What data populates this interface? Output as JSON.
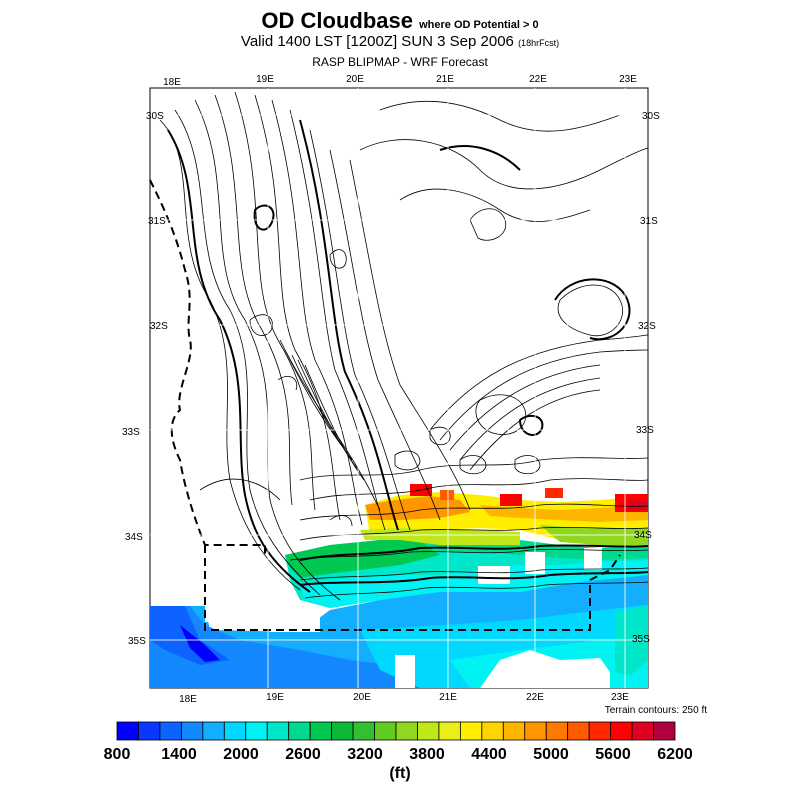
{
  "title": {
    "main": "OD Cloudbase",
    "qualifier": "where OD Potential > 0",
    "valid": "Valid 1400 LST [1200Z] SUN 3 Sep 2006",
    "forecast_hours": "(18hrFcst)",
    "subtitle": "RASP BLIPMAP - WRF Forecast"
  },
  "map": {
    "top_lon_labels": [
      "18E",
      "19E",
      "20E",
      "21E",
      "22E",
      "23E"
    ],
    "bottom_lon_labels": [
      "18E",
      "19E",
      "20E",
      "21E",
      "22E",
      "23E"
    ],
    "left_lat_labels": [
      "30S",
      "31S",
      "32S",
      "33S",
      "34S",
      "35S"
    ],
    "right_lat_labels": [
      "30S",
      "31S",
      "32S",
      "33S",
      "34S",
      "35S"
    ],
    "terrain_note": "Terrain contours: 250 ft"
  },
  "colorbar": {
    "labels": [
      "800",
      "1400",
      "2000",
      "2600",
      "3200",
      "3800",
      "4400",
      "5000",
      "5600",
      "6200"
    ],
    "unit": "(ft)",
    "colors": [
      "#0000ff",
      "#0a38ff",
      "#0d63ff",
      "#1488ff",
      "#14aeff",
      "#00d8ff",
      "#00f2f2",
      "#00e6c8",
      "#00d890",
      "#00c850",
      "#10b838",
      "#30c030",
      "#60cc20",
      "#90d820",
      "#c0e818",
      "#e8f018",
      "#ffee00",
      "#ffd400",
      "#ffb400",
      "#ff9600",
      "#ff7800",
      "#ff5a00",
      "#ff2800",
      "#ff0000",
      "#e00020",
      "#b00040"
    ]
  }
}
